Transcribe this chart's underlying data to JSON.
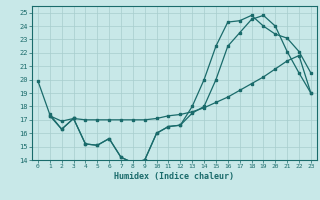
{
  "xlabel": "Humidex (Indice chaleur)",
  "bg_color": "#c8e8e8",
  "grid_color": "#a8cece",
  "line_color": "#1a6b6b",
  "xlim": [
    -0.5,
    23.5
  ],
  "ylim": [
    14,
    25.5
  ],
  "xticks": [
    0,
    1,
    2,
    3,
    4,
    5,
    6,
    7,
    8,
    9,
    10,
    11,
    12,
    13,
    14,
    15,
    16,
    17,
    18,
    19,
    20,
    21,
    22,
    23
  ],
  "yticks": [
    14,
    15,
    16,
    17,
    18,
    19,
    20,
    21,
    22,
    23,
    24,
    25
  ],
  "line1_x": [
    0,
    1,
    2,
    3,
    4,
    5,
    6,
    7,
    8,
    9,
    10,
    11,
    12,
    13,
    14,
    15,
    16,
    17,
    18,
    19,
    20,
    21,
    22,
    23
  ],
  "line1_y": [
    19.9,
    17.4,
    16.3,
    17.1,
    15.2,
    15.1,
    15.6,
    14.2,
    13.8,
    14.0,
    16.0,
    16.5,
    16.6,
    17.5,
    18.0,
    20.0,
    22.5,
    23.5,
    24.5,
    24.8,
    24.0,
    22.1,
    20.5,
    19.0
  ],
  "line2_x": [
    1,
    2,
    3,
    4,
    5,
    6,
    7,
    8,
    9,
    10,
    11,
    12,
    13,
    14,
    15,
    16,
    17,
    18,
    19,
    20,
    21,
    22,
    23
  ],
  "line2_y": [
    17.3,
    16.9,
    17.1,
    17.0,
    17.0,
    17.0,
    17.0,
    17.0,
    17.0,
    17.1,
    17.3,
    17.4,
    17.6,
    17.9,
    18.3,
    18.7,
    19.2,
    19.7,
    20.2,
    20.8,
    21.4,
    21.8,
    19.0
  ],
  "line3_x": [
    1,
    2,
    3,
    4,
    5,
    6,
    7,
    8,
    9,
    10,
    11,
    12,
    13,
    14,
    15,
    16,
    17,
    18,
    19,
    20,
    21,
    22,
    23
  ],
  "line3_y": [
    17.3,
    16.3,
    17.1,
    15.2,
    15.1,
    15.6,
    14.2,
    13.8,
    14.0,
    16.0,
    16.5,
    16.6,
    18.0,
    20.0,
    22.5,
    24.3,
    24.4,
    24.8,
    24.0,
    23.4,
    23.1,
    22.1,
    20.5
  ]
}
